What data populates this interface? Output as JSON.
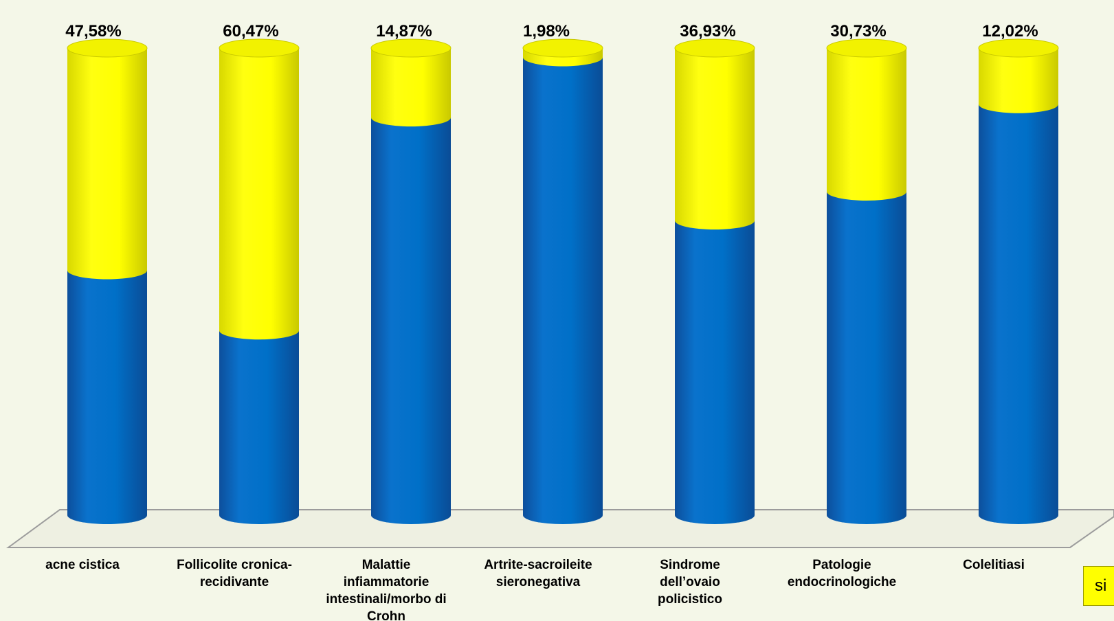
{
  "chart_data": {
    "type": "bar",
    "stacked": true,
    "categories": [
      [
        "acne cistica"
      ],
      [
        "Follicolite cronica-",
        "recidivante"
      ],
      [
        "Malattie",
        "infiammatorie",
        "intestinali/morbo di",
        "Crohn"
      ],
      [
        "Artrite-sacroileite",
        "sieronegativa"
      ],
      [
        "Sindrome",
        "dell’ovaio",
        "policistico"
      ],
      [
        "Patologie",
        "endocrinologiche"
      ],
      [
        "Colelitiasi"
      ]
    ],
    "value_labels": [
      "47,58%",
      "60,47%",
      "14,87%",
      "1,98%",
      "36,93%",
      "30,73%",
      "12,02%"
    ],
    "series": [
      {
        "name": "",
        "color": "#0070c8",
        "values": [
          52.42,
          39.53,
          85.13,
          98.02,
          63.07,
          69.27,
          87.98
        ]
      },
      {
        "name": "si",
        "color": "#ffff00",
        "values": [
          47.58,
          60.47,
          14.87,
          1.98,
          36.93,
          30.73,
          12.02
        ]
      }
    ],
    "ylim": [
      0,
      100
    ],
    "legend": {
      "position": "right",
      "visible_entries": [
        "si"
      ]
    },
    "grid": false
  }
}
